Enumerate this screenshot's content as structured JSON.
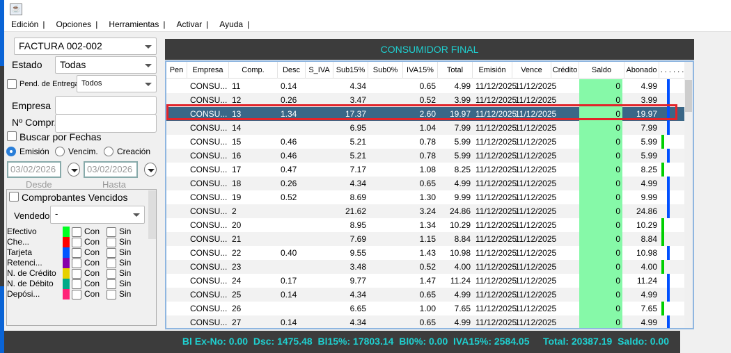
{
  "menu": [
    "Edición",
    "Opciones",
    "Herramientas",
    "Activar",
    "Ayuda"
  ],
  "filters": {
    "doc_type": "FACTURA 002-002",
    "estado_label": "Estado",
    "estado": "Todas",
    "pend_label": "Pend. de Entrega",
    "pend_value": "Todos",
    "empresa_label": "Empresa",
    "empresa_value": "",
    "compr_label": "Nº Compr.",
    "compr_value": "",
    "buscar_fechas": "Buscar por Fechas",
    "radios": [
      "Emisión",
      "Vencim.",
      "Creación"
    ],
    "desde_date": "03/02/2026",
    "hasta_date": "03/02/2026",
    "desde_label": "Desde",
    "hasta_label": "Hasta",
    "vencidos_label": "Comprobantes Vencidos",
    "vendedor_label": "Vendedor",
    "vendedor_value": "-"
  },
  "payments": [
    {
      "name": "Efectivo",
      "color": "#00ff22"
    },
    {
      "name": "Che...",
      "color": "#ff0000"
    },
    {
      "name": "Tarjeta",
      "color": "#0055ff"
    },
    {
      "name": "Retenci...",
      "color": "#8800aa"
    },
    {
      "name": "N. de Crédito",
      "color": "#e6d000"
    },
    {
      "name": "N. de Débito",
      "color": "#00aa88"
    },
    {
      "name": "Depósi...",
      "color": "#ff2277"
    }
  ],
  "con_label": "Con",
  "sin_label": "Sin",
  "table": {
    "title": "CONSUMIDOR FINAL",
    "columns": [
      "Pen",
      "Empresa",
      "Comp.",
      "Desc",
      "S_IVA",
      "Sub15%",
      "Sub0%",
      "IVA15%",
      "Total",
      "Emisión",
      "Vence",
      "Crédito",
      "Saldo",
      "Abonado",
      ". . . . . ."
    ],
    "rows": [
      [
        "",
        "CONSU...",
        "11",
        "0.14",
        "",
        "4.34",
        "",
        "0.65",
        "4.99",
        "11/12/2025",
        "11/12/2025",
        "",
        "0",
        "4.99",
        "blue"
      ],
      [
        "",
        "CONSU...",
        "12",
        "0.26",
        "",
        "3.47",
        "",
        "0.52",
        "3.99",
        "11/12/2025",
        "11/12/2025",
        "",
        "0",
        "3.99",
        "blue"
      ],
      [
        "",
        "CONSU...",
        "13",
        "1.34",
        "",
        "17.37",
        "",
        "2.60",
        "19.97",
        "11/12/2025",
        "11/12/2025",
        "",
        "0",
        "19.97",
        "blue"
      ],
      [
        "",
        "CONSU...",
        "14",
        "",
        "",
        "6.95",
        "",
        "1.04",
        "7.99",
        "11/12/2025",
        "11/12/2025",
        "",
        "0",
        "7.99",
        "blue"
      ],
      [
        "",
        "CONSU...",
        "15",
        "0.46",
        "",
        "5.21",
        "",
        "0.78",
        "5.99",
        "11/12/2025",
        "11/12/2025",
        "",
        "0",
        "5.99",
        "green"
      ],
      [
        "",
        "CONSU...",
        "16",
        "0.46",
        "",
        "5.21",
        "",
        "0.78",
        "5.99",
        "11/12/2025",
        "11/12/2025",
        "",
        "0",
        "5.99",
        "blue"
      ],
      [
        "",
        "CONSU...",
        "17",
        "0.47",
        "",
        "7.17",
        "",
        "1.08",
        "8.25",
        "11/12/2025",
        "11/12/2025",
        "",
        "0",
        "8.25",
        "green"
      ],
      [
        "",
        "CONSU...",
        "18",
        "0.26",
        "",
        "4.34",
        "",
        "0.65",
        "4.99",
        "11/12/2025",
        "11/12/2025",
        "",
        "0",
        "4.99",
        "blue"
      ],
      [
        "",
        "CONSU...",
        "19",
        "0.52",
        "",
        "8.69",
        "",
        "1.30",
        "9.99",
        "11/12/2025",
        "11/12/2025",
        "",
        "0",
        "9.99",
        "blue"
      ],
      [
        "",
        "CONSU...",
        "2",
        "",
        "",
        "21.62",
        "",
        "3.24",
        "24.86",
        "11/12/2025",
        "11/12/2025",
        "",
        "0",
        "24.86",
        "blue"
      ],
      [
        "",
        "CONSU...",
        "20",
        "",
        "",
        "8.95",
        "",
        "1.34",
        "10.29",
        "11/12/2025",
        "11/12/2025",
        "",
        "0",
        "10.29",
        "green"
      ],
      [
        "",
        "CONSU...",
        "21",
        "",
        "",
        "7.69",
        "",
        "1.15",
        "8.84",
        "11/12/2025",
        "11/12/2025",
        "",
        "0",
        "8.84",
        "green"
      ],
      [
        "",
        "CONSU...",
        "22",
        "0.40",
        "",
        "9.55",
        "",
        "1.43",
        "10.98",
        "11/12/2025",
        "11/12/2025",
        "",
        "0",
        "10.98",
        "blue"
      ],
      [
        "",
        "CONSU...",
        "23",
        "",
        "",
        "3.48",
        "",
        "0.52",
        "4.00",
        "11/12/2025",
        "11/12/2025",
        "",
        "0",
        "4.00",
        "green"
      ],
      [
        "",
        "CONSU...",
        "24",
        "0.17",
        "",
        "9.77",
        "",
        "1.47",
        "11.24",
        "11/12/2025",
        "11/12/2025",
        "",
        "0",
        "11.24",
        "blue"
      ],
      [
        "",
        "CONSU...",
        "25",
        "0.14",
        "",
        "4.34",
        "",
        "0.65",
        "4.99",
        "11/12/2025",
        "11/12/2025",
        "",
        "0",
        "4.99",
        "blue"
      ],
      [
        "",
        "CONSU...",
        "26",
        "",
        "",
        "6.65",
        "",
        "1.00",
        "7.65",
        "11/12/2025",
        "11/12/2025",
        "",
        "0",
        "7.65",
        "green"
      ],
      [
        "",
        "CONSU...",
        "27",
        "0.14",
        "",
        "4.34",
        "",
        "0.65",
        "4.99",
        "11/12/2025",
        "11/12/2025",
        "",
        "0",
        "4.99",
        "blue"
      ]
    ],
    "selected_index": 2
  },
  "colors": {
    "blue": "#0050ff",
    "green": "#00d000",
    "accent": "#1fd0d0"
  },
  "footer": "Bl Ex-No: 0.00  Dsc: 1475.48  Bl15%: 17803.14  Bl0%: 0.00  IVA15%: 2584.05     Total: 20387.19  Saldo: 0.00"
}
